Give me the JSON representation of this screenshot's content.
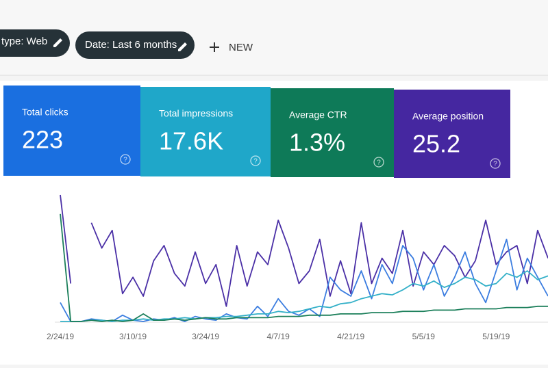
{
  "toolbar": {
    "filters": [
      "type: Web",
      "Date: Last 6 months"
    ],
    "new": "NEW"
  },
  "metrics": [
    {
      "label": "Total clicks",
      "value": "223"
    },
    {
      "label": "Total impressions",
      "value": "17.6K"
    },
    {
      "label": "Average CTR",
      "value": "1.3%"
    },
    {
      "label": "Average position",
      "value": "25.2"
    }
  ],
  "chart_data": {
    "type": "line",
    "categories": [
      "2/24/19",
      null,
      null,
      null,
      null,
      null,
      null,
      "3/10/19",
      null,
      null,
      null,
      null,
      null,
      null,
      "3/24/19",
      null,
      null,
      null,
      null,
      null,
      null,
      "4/7/19",
      null,
      null,
      null,
      null,
      null,
      null,
      "4/21/19",
      null,
      null,
      null,
      null,
      null,
      null,
      "5/5/19",
      null,
      null,
      null,
      null,
      null,
      null,
      "5/19/19",
      null,
      null,
      null,
      null,
      null
    ],
    "ylim": [
      0,
      100
    ],
    "series": [
      {
        "color": "#4a2fa6",
        "values": [
          100,
          30,
          null,
          78,
          58,
          72,
          22,
          35,
          20,
          48,
          60,
          38,
          28,
          55,
          30,
          45,
          12,
          60,
          28,
          55,
          45,
          80,
          58,
          30,
          40,
          65,
          20,
          48,
          22,
          78,
          30,
          50,
          38,
          72,
          28,
          55,
          45,
          60,
          52,
          35,
          48,
          80,
          45,
          55,
          60,
          30,
          72,
          50
        ]
      },
      {
        "color": "#3b7de0",
        "values": [
          15,
          0,
          0,
          2,
          1,
          0,
          5,
          1,
          0,
          2,
          1,
          3,
          0,
          4,
          2,
          1,
          6,
          3,
          2,
          12,
          4,
          18,
          8,
          5,
          10,
          4,
          35,
          25,
          20,
          40,
          18,
          45,
          30,
          60,
          50,
          25,
          45,
          20,
          35,
          55,
          30,
          15,
          40,
          65,
          25,
          50,
          35,
          20
        ]
      },
      {
        "color": "#33b0c8",
        "values": [
          0,
          0,
          0,
          1,
          1,
          0,
          1,
          1,
          2,
          1,
          2,
          2,
          3,
          2,
          3,
          3,
          4,
          4,
          5,
          6,
          6,
          8,
          7,
          8,
          10,
          12,
          11,
          14,
          15,
          18,
          20,
          22,
          21,
          25,
          30,
          28,
          32,
          27,
          30,
          35,
          33,
          28,
          30,
          38,
          35,
          40,
          33,
          36
        ]
      },
      {
        "color": "#1b7f5a",
        "values": [
          85,
          0,
          0,
          1,
          0,
          1,
          0,
          1,
          6,
          1,
          1,
          2,
          1,
          2,
          3,
          2,
          2,
          3,
          3,
          3,
          3,
          4,
          4,
          4,
          5,
          5,
          5,
          6,
          6,
          6,
          7,
          7,
          7,
          8,
          8,
          8,
          9,
          9,
          9,
          10,
          10,
          10,
          10,
          11,
          11,
          11,
          12,
          12
        ]
      }
    ]
  }
}
